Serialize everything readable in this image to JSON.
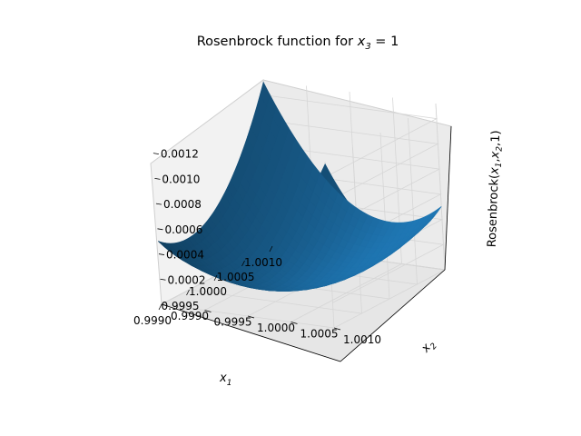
{
  "chart_data": {
    "type": "surface3d",
    "title_prefix": "Rosenbrock function for ",
    "title_var": "x",
    "title_sub": "3",
    "title_suffix": " = 1",
    "x_name": "x",
    "x_sub": "1",
    "y_name": "x",
    "y_sub": "2",
    "z_label_prefix": "Rosenbrock(",
    "z_label_x": "x",
    "z_label_sub1": "1",
    "z_label_sep": ",",
    "z_label_sub2": "2",
    "z_label_suffix": ",1)",
    "x_ticks": [
      "0.9990",
      "0.9995",
      "1.0000",
      "1.0005",
      "1.0010"
    ],
    "x_tick_values": [
      0.999,
      0.9995,
      1.0,
      1.0005,
      1.001
    ],
    "y_ticks": [
      "0.9990",
      "0.9995",
      "1.0000",
      "1.0005",
      "1.0010"
    ],
    "y_tick_values": [
      0.999,
      0.9995,
      1.0,
      1.0005,
      1.001
    ],
    "z_ticks": [
      "0.0002",
      "0.0004",
      "0.0006",
      "0.0008",
      "0.0010",
      "0.0012"
    ],
    "z_tick_values": [
      0.0002,
      0.0004,
      0.0006,
      0.0008,
      0.001,
      0.0012
    ],
    "xlim": [
      0.999,
      1.001
    ],
    "ylim": [
      0.999,
      1.001
    ],
    "zlim": [
      0.0,
      0.00132
    ],
    "surface": {
      "function": "rosenbrock",
      "x3": 1,
      "x_range": [
        0.999,
        1.001
      ],
      "y_range": [
        0.999,
        1.001
      ],
      "min_point": [
        1.0,
        1.0,
        0.0
      ],
      "max_value": 0.00132
    },
    "surface_color": "#1f77b4",
    "grid": true
  }
}
